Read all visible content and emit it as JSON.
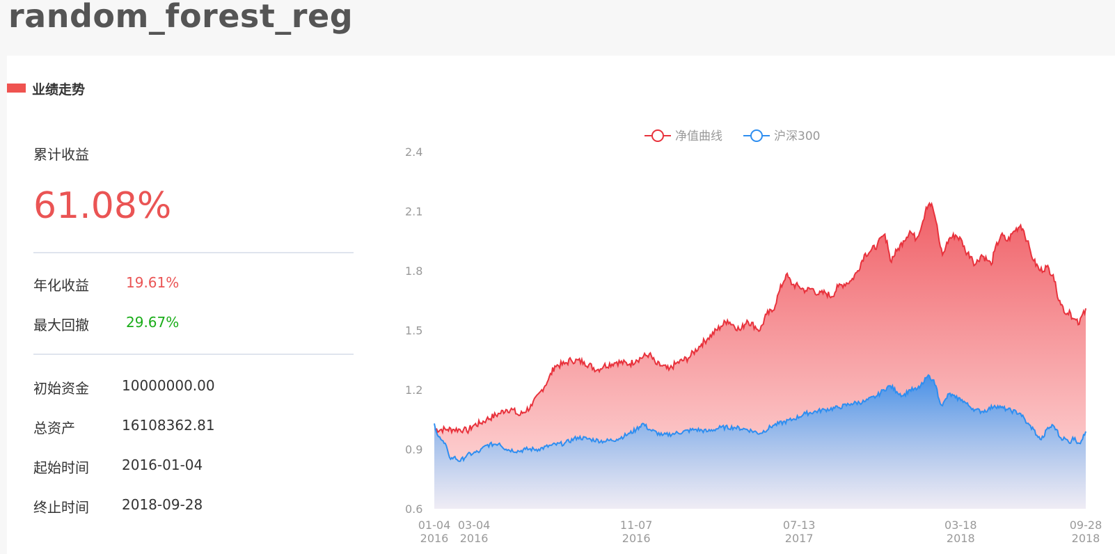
{
  "page": {
    "title": "random_forest_reg"
  },
  "section": {
    "title": "业绩走势"
  },
  "summary": {
    "cumulative_label": "累计收益",
    "cumulative_value": "61.08%",
    "annual_label": "年化收益",
    "annual_value": "19.61%",
    "drawdown_label": "最大回撤",
    "drawdown_value": "29.67%",
    "initial_label": "初始资金",
    "initial_value": "10000000.00",
    "total_label": "总资产",
    "total_value": "16108362.81",
    "start_label": "起始时间",
    "start_value": "2016-01-04",
    "end_label": "终止时间",
    "end_value": "2018-09-28"
  },
  "colors": {
    "accent_red": "#ea5454",
    "drawdown_green": "#1aad19",
    "nav_line": "#e8323c",
    "hs300_line": "#2e8ef0"
  },
  "chart_data": {
    "type": "area",
    "title": "",
    "xlabel": "",
    "ylabel": "",
    "ylim": [
      0.6,
      2.4
    ],
    "yticks": [
      "0.6",
      "0.9",
      "1.2",
      "1.5",
      "1.8",
      "2.1",
      "2.4"
    ],
    "xticks": [
      {
        "t": 0,
        "label": [
          "01-04",
          "2016"
        ]
      },
      {
        "t": 0.061,
        "label": [
          "03-04",
          "2016"
        ]
      },
      {
        "t": 0.31,
        "label": [
          "11-07",
          "2016"
        ]
      },
      {
        "t": 0.56,
        "label": [
          "07-13",
          "2017"
        ]
      },
      {
        "t": 0.808,
        "label": [
          "03-18",
          "2018"
        ]
      },
      {
        "t": 1.0,
        "label": [
          "09-28",
          "2018"
        ]
      }
    ],
    "legend": {
      "position": "top-center"
    },
    "grid": false,
    "series": [
      {
        "name": "净值曲线",
        "points": [
          [
            0,
            1.0
          ],
          [
            0.02,
            1.0
          ],
          [
            0.03,
            1.0
          ],
          [
            0.045,
            1.0
          ],
          [
            0.05,
            0.99
          ],
          [
            0.06,
            1.02
          ],
          [
            0.07,
            1.03
          ],
          [
            0.08,
            1.05
          ],
          [
            0.1,
            1.08
          ],
          [
            0.11,
            1.1
          ],
          [
            0.12,
            1.1
          ],
          [
            0.13,
            1.07
          ],
          [
            0.15,
            1.12
          ],
          [
            0.165,
            1.2
          ],
          [
            0.175,
            1.25
          ],
          [
            0.185,
            1.32
          ],
          [
            0.2,
            1.33
          ],
          [
            0.21,
            1.35
          ],
          [
            0.23,
            1.34
          ],
          [
            0.25,
            1.3
          ],
          [
            0.26,
            1.32
          ],
          [
            0.28,
            1.34
          ],
          [
            0.3,
            1.33
          ],
          [
            0.31,
            1.35
          ],
          [
            0.33,
            1.38
          ],
          [
            0.34,
            1.33
          ],
          [
            0.35,
            1.32
          ],
          [
            0.36,
            1.3
          ],
          [
            0.37,
            1.33
          ],
          [
            0.39,
            1.36
          ],
          [
            0.41,
            1.43
          ],
          [
            0.42,
            1.46
          ],
          [
            0.44,
            1.52
          ],
          [
            0.45,
            1.55
          ],
          [
            0.47,
            1.5
          ],
          [
            0.48,
            1.55
          ],
          [
            0.5,
            1.5
          ],
          [
            0.51,
            1.58
          ],
          [
            0.52,
            1.6
          ],
          [
            0.53,
            1.7
          ],
          [
            0.54,
            1.78
          ],
          [
            0.55,
            1.73
          ],
          [
            0.56,
            1.72
          ],
          [
            0.57,
            1.7
          ],
          [
            0.58,
            1.71
          ],
          [
            0.59,
            1.68
          ],
          [
            0.6,
            1.69
          ],
          [
            0.61,
            1.67
          ],
          [
            0.62,
            1.72
          ],
          [
            0.64,
            1.75
          ],
          [
            0.65,
            1.8
          ],
          [
            0.66,
            1.88
          ],
          [
            0.67,
            1.9
          ],
          [
            0.68,
            1.93
          ],
          [
            0.69,
            1.98
          ],
          [
            0.695,
            1.95
          ],
          [
            0.7,
            1.85
          ],
          [
            0.71,
            1.9
          ],
          [
            0.72,
            1.95
          ],
          [
            0.73,
            2.0
          ],
          [
            0.74,
            1.96
          ],
          [
            0.75,
            2.05
          ],
          [
            0.755,
            2.12
          ],
          [
            0.76,
            2.14
          ],
          [
            0.765,
            2.12
          ],
          [
            0.77,
            2.05
          ],
          [
            0.775,
            1.95
          ],
          [
            0.78,
            1.88
          ],
          [
            0.785,
            1.92
          ],
          [
            0.79,
            1.96
          ],
          [
            0.8,
            1.98
          ],
          [
            0.81,
            1.95
          ],
          [
            0.815,
            1.9
          ],
          [
            0.825,
            1.87
          ],
          [
            0.83,
            1.83
          ],
          [
            0.84,
            1.88
          ],
          [
            0.85,
            1.85
          ],
          [
            0.855,
            1.83
          ],
          [
            0.86,
            1.9
          ],
          [
            0.87,
            1.98
          ],
          [
            0.88,
            1.95
          ],
          [
            0.89,
            2.0
          ],
          [
            0.9,
            2.03
          ],
          [
            0.905,
            2.0
          ],
          [
            0.91,
            1.95
          ],
          [
            0.915,
            1.9
          ],
          [
            0.92,
            1.85
          ],
          [
            0.93,
            1.8
          ],
          [
            0.94,
            1.82
          ],
          [
            0.95,
            1.78
          ],
          [
            0.955,
            1.7
          ],
          [
            0.96,
            1.65
          ],
          [
            0.97,
            1.58
          ],
          [
            0.975,
            1.6
          ],
          [
            0.98,
            1.56
          ],
          [
            0.99,
            1.53
          ],
          [
            0.995,
            1.58
          ],
          [
            1.0,
            1.61
          ]
        ]
      },
      {
        "name": "沪深300",
        "points": [
          [
            0,
            1.03
          ],
          [
            0.005,
            0.97
          ],
          [
            0.01,
            0.95
          ],
          [
            0.015,
            0.93
          ],
          [
            0.02,
            0.9
          ],
          [
            0.025,
            0.85
          ],
          [
            0.03,
            0.86
          ],
          [
            0.04,
            0.84
          ],
          [
            0.05,
            0.87
          ],
          [
            0.06,
            0.88
          ],
          [
            0.07,
            0.89
          ],
          [
            0.08,
            0.92
          ],
          [
            0.1,
            0.93
          ],
          [
            0.11,
            0.9
          ],
          [
            0.13,
            0.89
          ],
          [
            0.14,
            0.9
          ],
          [
            0.16,
            0.9
          ],
          [
            0.18,
            0.92
          ],
          [
            0.2,
            0.93
          ],
          [
            0.22,
            0.96
          ],
          [
            0.24,
            0.95
          ],
          [
            0.26,
            0.94
          ],
          [
            0.28,
            0.95
          ],
          [
            0.3,
            0.98
          ],
          [
            0.31,
            1.0
          ],
          [
            0.32,
            1.03
          ],
          [
            0.33,
            1.0
          ],
          [
            0.35,
            0.97
          ],
          [
            0.37,
            0.98
          ],
          [
            0.4,
            1.0
          ],
          [
            0.42,
            0.99
          ],
          [
            0.44,
            1.01
          ],
          [
            0.46,
            1.01
          ],
          [
            0.48,
            1.0
          ],
          [
            0.5,
            0.98
          ],
          [
            0.52,
            1.02
          ],
          [
            0.55,
            1.05
          ],
          [
            0.57,
            1.08
          ],
          [
            0.6,
            1.1
          ],
          [
            0.62,
            1.11
          ],
          [
            0.64,
            1.13
          ],
          [
            0.66,
            1.14
          ],
          [
            0.68,
            1.17
          ],
          [
            0.69,
            1.2
          ],
          [
            0.7,
            1.22
          ],
          [
            0.71,
            1.19
          ],
          [
            0.72,
            1.17
          ],
          [
            0.73,
            1.2
          ],
          [
            0.74,
            1.2
          ],
          [
            0.75,
            1.23
          ],
          [
            0.755,
            1.26
          ],
          [
            0.76,
            1.27
          ],
          [
            0.765,
            1.25
          ],
          [
            0.77,
            1.22
          ],
          [
            0.775,
            1.15
          ],
          [
            0.78,
            1.12
          ],
          [
            0.79,
            1.18
          ],
          [
            0.8,
            1.16
          ],
          [
            0.81,
            1.15
          ],
          [
            0.82,
            1.12
          ],
          [
            0.83,
            1.1
          ],
          [
            0.84,
            1.09
          ],
          [
            0.85,
            1.1
          ],
          [
            0.86,
            1.12
          ],
          [
            0.87,
            1.11
          ],
          [
            0.88,
            1.1
          ],
          [
            0.9,
            1.08
          ],
          [
            0.91,
            1.03
          ],
          [
            0.92,
            1.0
          ],
          [
            0.925,
            0.97
          ],
          [
            0.93,
            0.95
          ],
          [
            0.935,
            0.96
          ],
          [
            0.94,
            1.0
          ],
          [
            0.95,
            1.02
          ],
          [
            0.955,
            1.0
          ],
          [
            0.96,
            0.96
          ],
          [
            0.97,
            0.95
          ],
          [
            0.975,
            0.93
          ],
          [
            0.98,
            0.96
          ],
          [
            0.99,
            0.93
          ],
          [
            0.995,
            0.95
          ],
          [
            1.0,
            0.99
          ]
        ]
      }
    ]
  }
}
